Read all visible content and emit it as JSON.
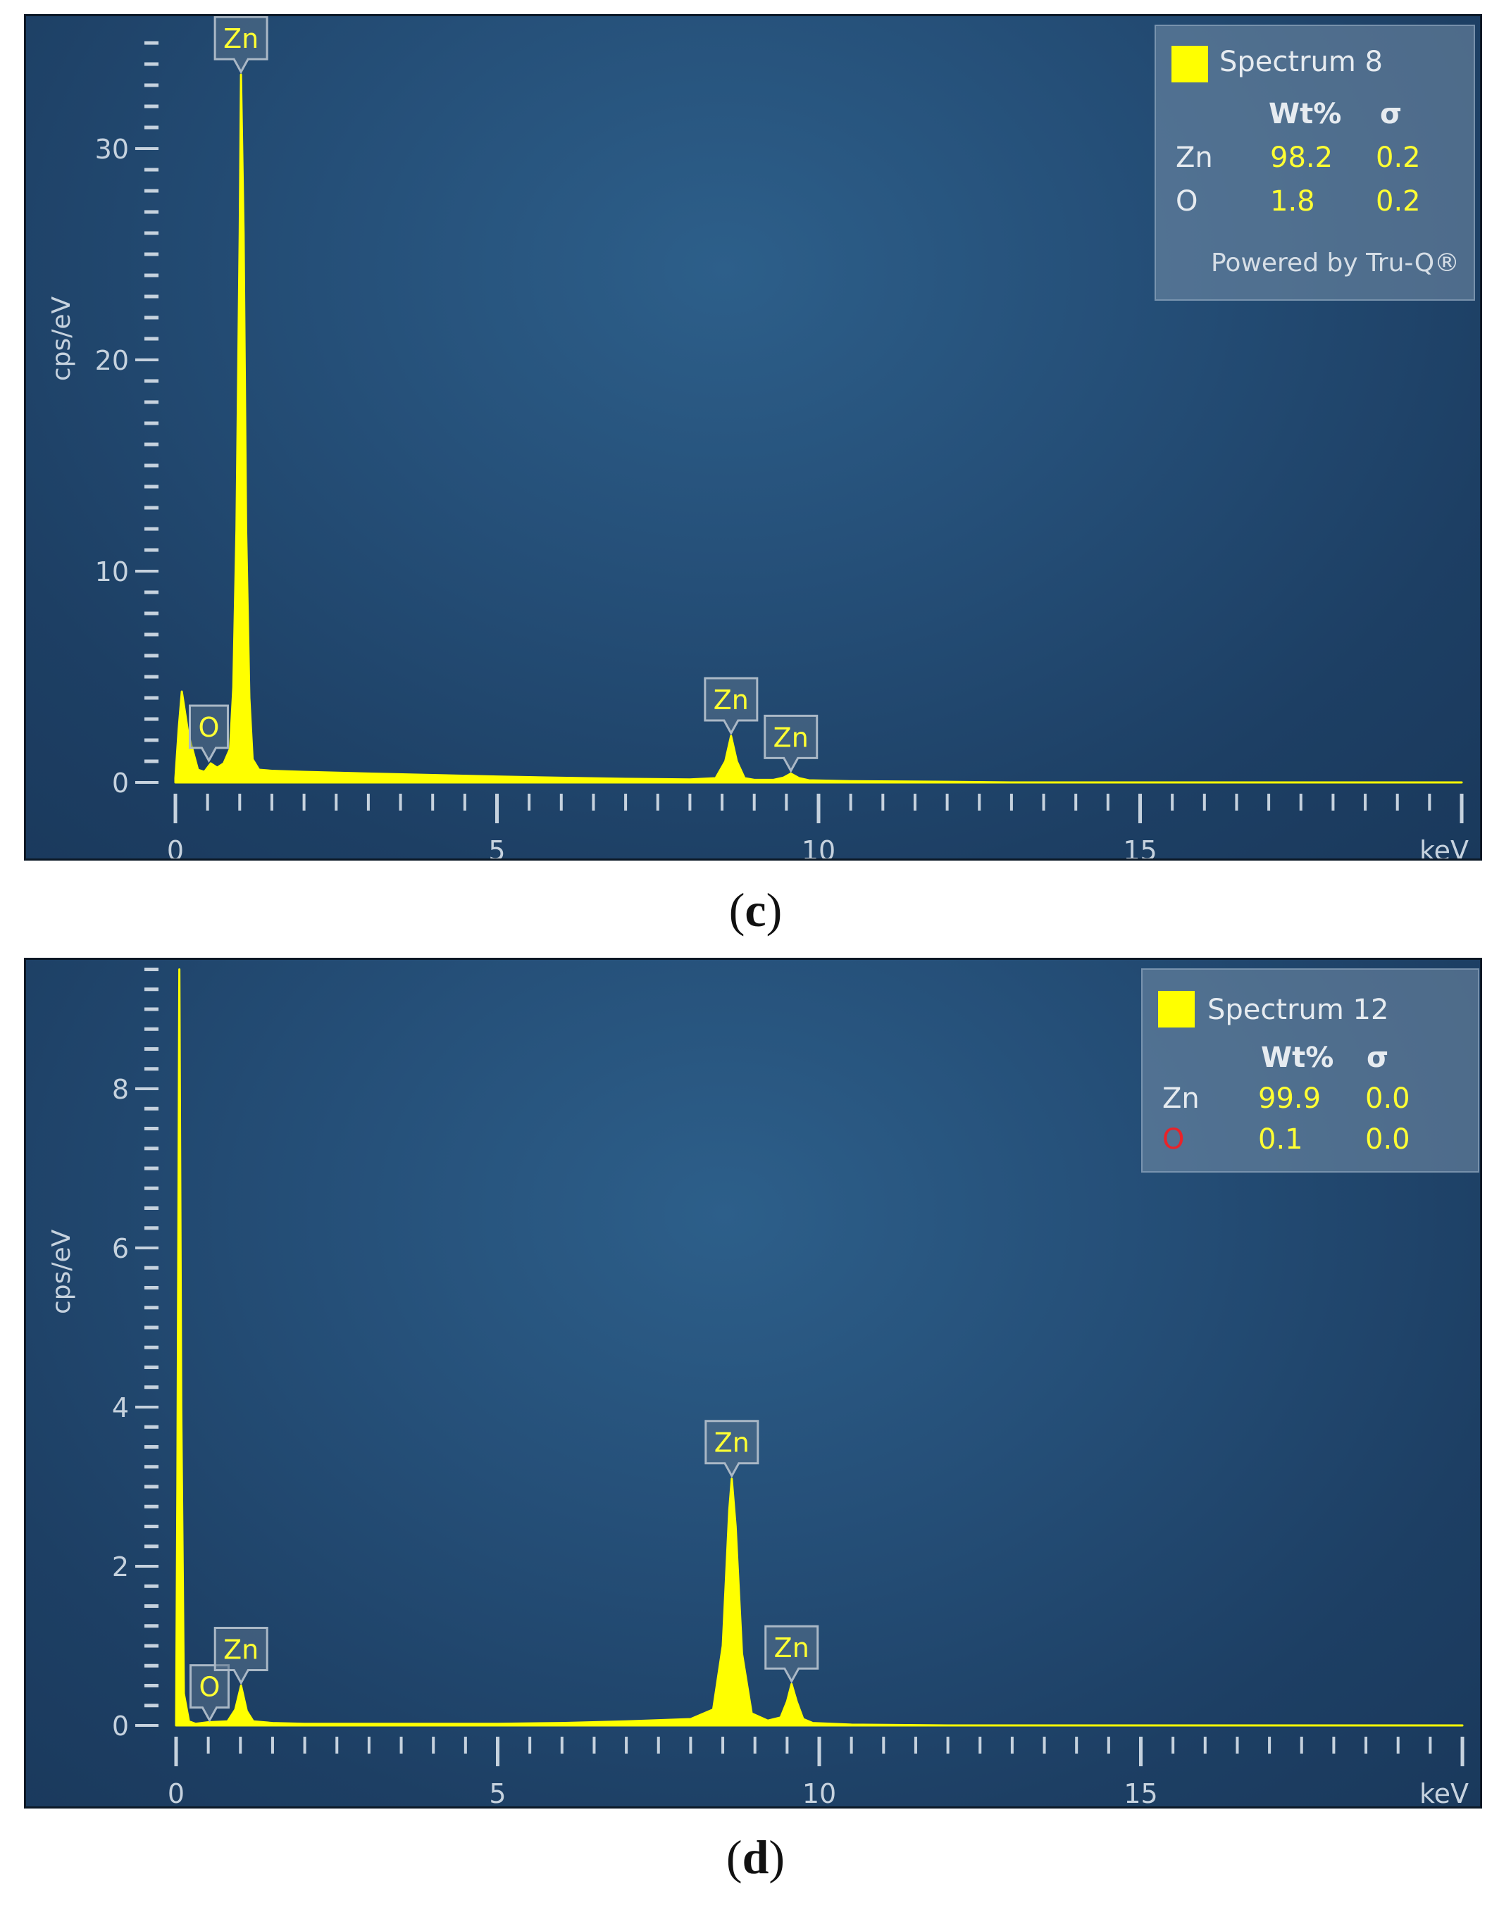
{
  "chart_data": [
    {
      "type": "line",
      "panel_label": "c",
      "xlabel": "keV",
      "ylabel": "cps/eV",
      "xlim": [
        0,
        20
      ],
      "ylim": [
        0,
        35
      ],
      "x_ticks": [
        0,
        5,
        10,
        15
      ],
      "y_ticks": [
        0,
        10,
        20,
        30
      ],
      "grid": false,
      "series": [
        {
          "color": "#ffff00",
          "x": [
            0.0,
            0.05,
            0.1,
            0.2,
            0.35,
            0.45,
            0.55,
            0.65,
            0.75,
            0.85,
            0.9,
            0.95,
            1.0,
            1.02,
            1.06,
            1.1,
            1.15,
            1.2,
            1.3,
            1.5,
            2.0,
            3.0,
            4.0,
            5.0,
            6.0,
            7.0,
            8.0,
            8.4,
            8.55,
            8.64,
            8.73,
            8.85,
            9.0,
            9.3,
            9.45,
            9.57,
            9.7,
            9.85,
            10.5,
            12.0,
            13.0,
            15.0,
            20.0
          ],
          "y": [
            0.2,
            2.5,
            4.3,
            2.3,
            0.6,
            0.5,
            0.9,
            0.7,
            0.9,
            1.6,
            4.5,
            12.0,
            26.0,
            33.5,
            26.0,
            12.0,
            4.0,
            1.1,
            0.6,
            0.55,
            0.5,
            0.42,
            0.35,
            0.28,
            0.22,
            0.17,
            0.14,
            0.2,
            1.0,
            2.2,
            1.0,
            0.2,
            0.12,
            0.12,
            0.22,
            0.42,
            0.2,
            0.1,
            0.06,
            0.03,
            0.0,
            0.0,
            0.0
          ]
        }
      ],
      "peak_labels": [
        {
          "text": "Zn",
          "x": 1.02,
          "y": 33.5
        },
        {
          "text": "O",
          "x": 0.52,
          "y": 0.9
        },
        {
          "text": "Zn",
          "x": 8.64,
          "y": 2.2
        },
        {
          "text": "Zn",
          "x": 9.57,
          "y": 0.42
        }
      ],
      "legend": {
        "spectrum": "Spectrum 8",
        "headers": [
          "Wt%",
          "σ"
        ],
        "rows": [
          {
            "element": "Zn",
            "element_color": "#e6ebf0",
            "wt": "98.2",
            "sigma": "0.2"
          },
          {
            "element": "O",
            "element_color": "#e6ebf0",
            "wt": "1.8",
            "sigma": "0.2"
          }
        ],
        "footer": "Powered by Tru-Q®",
        "placement": "top-right"
      }
    },
    {
      "type": "line",
      "panel_label": "d",
      "xlabel": "keV",
      "ylabel": "cps/eV",
      "xlim": [
        0,
        20
      ],
      "ylim": [
        0,
        9.5
      ],
      "x_ticks": [
        0,
        5,
        10,
        15
      ],
      "y_ticks": [
        0,
        2,
        4,
        6,
        8
      ],
      "grid": false,
      "series": [
        {
          "color": "#ffff00",
          "x": [
            0.0,
            0.02,
            0.05,
            0.08,
            0.12,
            0.2,
            0.3,
            0.5,
            0.8,
            0.92,
            1.01,
            1.1,
            1.2,
            1.5,
            2.0,
            3.0,
            4.0,
            5.0,
            6.0,
            7.0,
            8.0,
            8.35,
            8.5,
            8.6,
            8.64,
            8.7,
            8.8,
            8.95,
            9.2,
            9.4,
            9.5,
            9.57,
            9.65,
            9.75,
            9.9,
            10.5,
            12.0,
            15.0,
            20.0
          ],
          "y": [
            0.0,
            3.0,
            9.5,
            4.0,
            0.4,
            0.05,
            0.02,
            0.04,
            0.05,
            0.2,
            0.5,
            0.18,
            0.05,
            0.03,
            0.02,
            0.02,
            0.02,
            0.02,
            0.03,
            0.05,
            0.08,
            0.2,
            1.0,
            2.7,
            3.1,
            2.5,
            0.9,
            0.15,
            0.06,
            0.1,
            0.3,
            0.52,
            0.3,
            0.08,
            0.03,
            0.01,
            0.0,
            0.0,
            0.0
          ]
        }
      ],
      "peak_labels": [
        {
          "text": "O",
          "x": 0.52,
          "y": 0.03
        },
        {
          "text": "Zn",
          "x": 1.01,
          "y": 0.5
        },
        {
          "text": "Zn",
          "x": 8.64,
          "y": 3.1
        },
        {
          "text": "Zn",
          "x": 9.57,
          "y": 0.52
        }
      ],
      "legend": {
        "spectrum": "Spectrum 12",
        "headers": [
          "Wt%",
          "σ"
        ],
        "rows": [
          {
            "element": "Zn",
            "element_color": "#e6ebf0",
            "wt": "99.9",
            "sigma": "0.0"
          },
          {
            "element": "O",
            "element_color": "#e8232a",
            "wt": "0.1",
            "sigma": "0.0"
          }
        ],
        "placement": "top-right"
      }
    }
  ]
}
